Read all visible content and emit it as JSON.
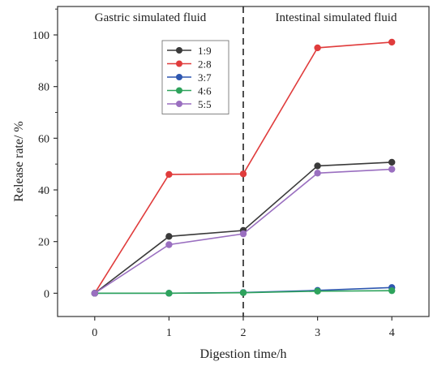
{
  "chart_data": {
    "type": "line",
    "xlabel": "Digestion time/h",
    "ylabel": "Release rate/ %",
    "x": [
      0,
      1,
      2,
      3,
      4
    ],
    "x_ticks": [
      "0",
      "1",
      "2",
      "3",
      "4"
    ],
    "xlim": [
      -0.5,
      4.5
    ],
    "y_ticks": [
      "0",
      "20",
      "40",
      "60",
      "80",
      "100"
    ],
    "ylim": [
      -9,
      111
    ],
    "grid": false,
    "legend_position": "top-left inside",
    "divider": {
      "x": 2,
      "style": "dashed"
    },
    "regions": [
      {
        "label": "Gastric simulated fluid",
        "side": "left"
      },
      {
        "label": "Intestinal simulated fluid",
        "side": "right"
      }
    ],
    "series": [
      {
        "name": "1:9",
        "color": "#3a3a3a",
        "values": [
          0,
          22,
          24.3,
          49.3,
          50.7
        ]
      },
      {
        "name": "2:8",
        "color": "#e03c3c",
        "values": [
          0,
          46,
          46.2,
          95,
          97.2
        ]
      },
      {
        "name": "3:7",
        "color": "#2e57b0",
        "values": [
          0,
          0,
          0.3,
          1.1,
          2.2
        ]
      },
      {
        "name": "4:6",
        "color": "#2ea35c",
        "values": [
          0,
          0,
          0.2,
          0.8,
          1
        ]
      },
      {
        "name": "5:5",
        "color": "#9a6fc0",
        "values": [
          0,
          18.8,
          23,
          46.5,
          48
        ]
      }
    ]
  }
}
